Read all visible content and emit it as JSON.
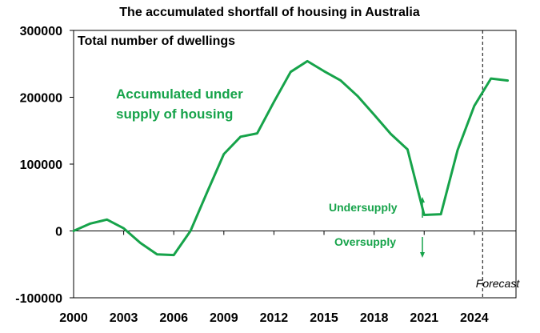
{
  "chart_data": {
    "type": "line",
    "title": "The accumulated shortfall of housing in Australia",
    "ylabel": "Total number of dwellings",
    "xlabel": "",
    "xlim": [
      2000,
      2026.5
    ],
    "ylim": [
      -100000,
      300000
    ],
    "x_ticks": [
      2000,
      2003,
      2006,
      2009,
      2012,
      2015,
      2018,
      2021,
      2024
    ],
    "y_ticks": [
      -100000,
      0,
      100000,
      200000,
      300000
    ],
    "grid": false,
    "series": [
      {
        "name": "Accumulated under supply of housing",
        "color": "#16a34a",
        "x": [
          2000,
          2001,
          2002,
          2003,
          2004,
          2005,
          2006,
          2007,
          2008,
          2009,
          2010,
          2011,
          2012,
          2013,
          2014,
          2015,
          2016,
          2017,
          2018,
          2019,
          2020,
          2021,
          2022,
          2023,
          2024,
          2025,
          2026
        ],
        "values": [
          0,
          11000,
          17000,
          4000,
          -18000,
          -35000,
          -36000,
          0,
          58000,
          115000,
          141000,
          146000,
          193000,
          238000,
          254000,
          239000,
          225000,
          202000,
          174000,
          145000,
          122000,
          24000,
          25000,
          121000,
          187000,
          228000,
          225000
        ]
      }
    ],
    "forecast": {
      "x": 2024.5,
      "label": "Forecast"
    },
    "annotations": {
      "series_label_line1": "Accumulated under",
      "series_label_line2": "supply of housing",
      "undersupply": "Undersupply",
      "oversupply": "Oversupply"
    }
  },
  "colors": {
    "series": "#16a34a",
    "axis": "#000000"
  }
}
